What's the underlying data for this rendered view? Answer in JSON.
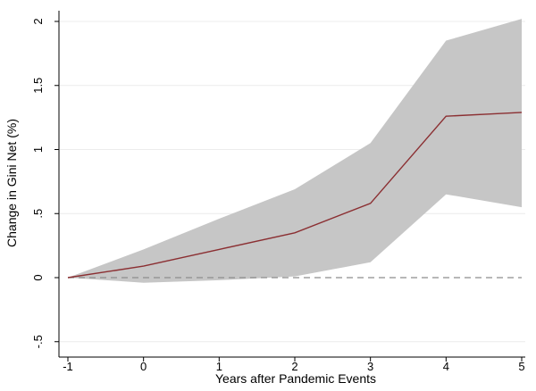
{
  "chart_data": {
    "type": "line",
    "title": "",
    "xlabel": "Years after Pandemic Events",
    "ylabel": "Change in Gini Net (%)",
    "xlim": [
      -1,
      5
    ],
    "ylim": [
      -0.5,
      2
    ],
    "x_ticks": [
      -1,
      0,
      1,
      2,
      3,
      4,
      5
    ],
    "x_tick_labels": [
      "-1",
      "0",
      "1",
      "2",
      "3",
      "4",
      "5"
    ],
    "y_ticks": [
      -0.5,
      0,
      0.5,
      1,
      1.5,
      2
    ],
    "y_tick_labels": [
      "-.5",
      "0",
      ".5",
      "1",
      "1.5",
      "2"
    ],
    "grid": "horizontal",
    "legend": "none",
    "reference_line": {
      "y": 0,
      "style": "dashed",
      "color": "#8c8c8c"
    },
    "series": [
      {
        "x": [
          -1,
          0,
          1,
          2,
          3,
          4,
          5
        ],
        "values": [
          0,
          0.09,
          0.22,
          0.35,
          0.58,
          1.26,
          1.29
        ],
        "lower": [
          0,
          -0.04,
          -0.02,
          0.01,
          0.12,
          0.65,
          0.55
        ],
        "upper": [
          0,
          0.22,
          0.46,
          0.69,
          1.05,
          1.85,
          2.02
        ],
        "color": "#8b2f32",
        "band_color": "#c6c6c6"
      }
    ]
  }
}
